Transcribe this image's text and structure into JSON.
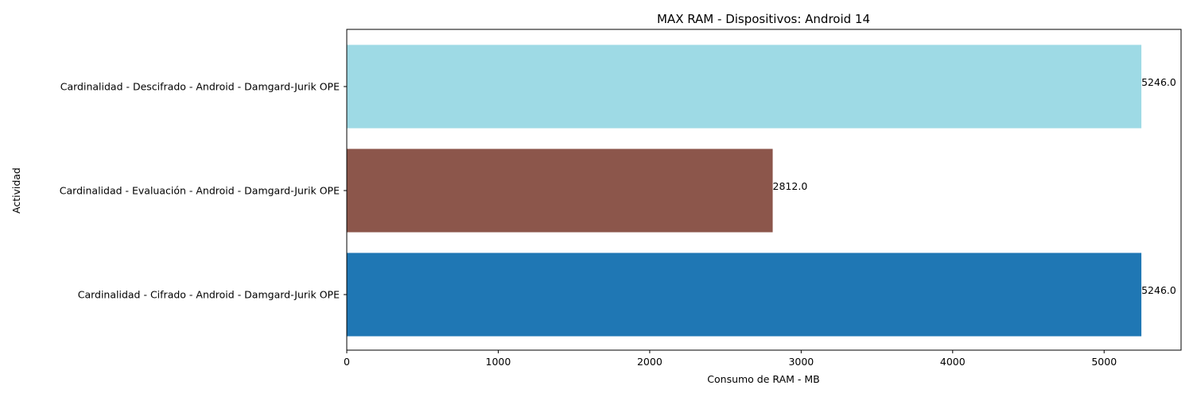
{
  "chart_data": {
    "type": "bar",
    "orientation": "horizontal",
    "title": "MAX RAM - Dispositivos: Android 14",
    "xlabel": "Consumo de RAM - MB",
    "ylabel": "Actividad",
    "xlim": [
      0,
      5508
    ],
    "xticks": [
      0,
      1000,
      2000,
      3000,
      4000,
      5000
    ],
    "grid": false,
    "legend": "none",
    "categories": [
      "Cardinalidad - Cifrado - Android - Damgard-Jurik OPE",
      "Cardinalidad - Evaluación - Android - Damgard-Jurik OPE",
      "Cardinalidad - Descifrado - Android - Damgard-Jurik OPE"
    ],
    "values": [
      5246.0,
      2812.0,
      5246.0
    ],
    "value_labels": [
      "5246.0",
      "2812.0",
      "5246.0"
    ],
    "colors": [
      "#1f77b4",
      "#8c564b",
      "#9edae5"
    ]
  }
}
